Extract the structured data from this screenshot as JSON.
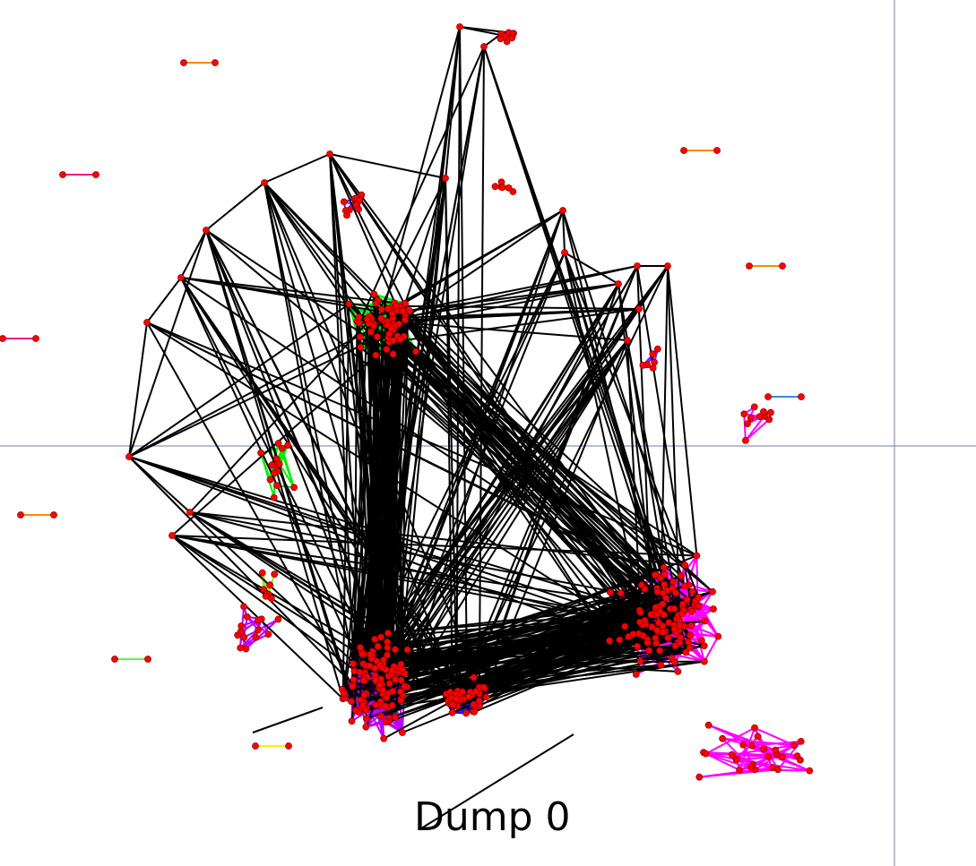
{
  "caption": "Dump 0",
  "colors": {
    "background": "#ffffff",
    "node": "#ff0000",
    "node_outline": "#990000",
    "axis_line": "#6f7f99",
    "cluster_green": "#00ee00",
    "cluster_lime": "#99ee22",
    "cluster_magenta": "#ff00ff",
    "cluster_purple": "#bb00ff",
    "cluster_blue": "#2211ee",
    "cluster_violet": "#8822ee",
    "cluster_yellow": "#ffee00",
    "inter_cluster_edges": "#000000",
    "pair_orange": "#ff8800",
    "pair_pink": "#ee1188",
    "pair_azure": "#3388ee",
    "pair_lightgreen": "#66ee55"
  },
  "graph": {
    "clusters": [
      "green",
      "lime",
      "magenta",
      "purple",
      "blue",
      "violet",
      "yellow"
    ],
    "isolated_pairs": 9
  }
}
